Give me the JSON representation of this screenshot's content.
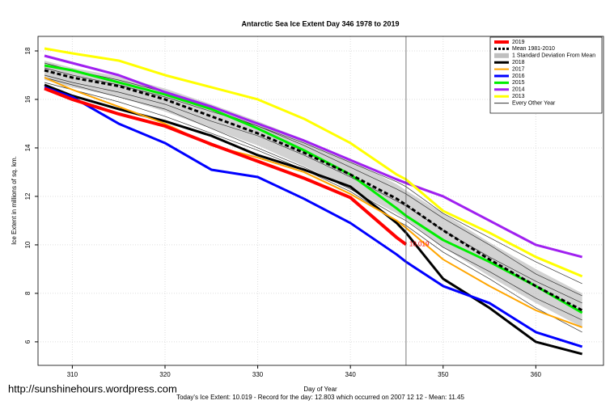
{
  "chart_data": {
    "type": "line",
    "title": "Antarctic Sea Ice Extent Day 346 1978 to 2019",
    "xlabel": "Day of Year",
    "ylabel": "Ice Extent in millions of sq. km.",
    "footer": "Today's Ice Extent: 10.019  - Record for the day: 12.803 which occurred on 2007 12 12  - Mean: 11.45",
    "watermark": "http://sunshinehours.wordpress.com",
    "annotation": "10.019",
    "marker_day": 346,
    "x": [
      307,
      310,
      315,
      320,
      325,
      330,
      335,
      340,
      345,
      346,
      350,
      355,
      360,
      365
    ],
    "xlim": [
      306.3,
      367.3
    ],
    "xticks": [
      310,
      320,
      330,
      340,
      350,
      360
    ],
    "ylim": [
      5.03,
      18.6
    ],
    "yticks": [
      6,
      8,
      10,
      12,
      14,
      16,
      18
    ],
    "grid": true,
    "legend": "top-right",
    "series": [
      {
        "name": "2019",
        "color": "#ff0000",
        "width": 4,
        "values": [
          16.45,
          16.0,
          15.4,
          14.9,
          14.15,
          13.45,
          12.75,
          11.95,
          10.3,
          10.019,
          null,
          null,
          null,
          null
        ]
      },
      {
        "name": "Mean 1981-2010",
        "color": "#000000",
        "width": 3,
        "dashed": true,
        "values": [
          17.2,
          16.9,
          16.55,
          16.0,
          15.3,
          14.6,
          13.8,
          12.9,
          11.9,
          11.65,
          10.6,
          9.4,
          8.3,
          7.3
        ]
      },
      {
        "name": "1 Standard Deviation From Mean",
        "color": "#bfbfbf",
        "upper": [
          17.6,
          17.3,
          16.95,
          16.45,
          15.8,
          15.1,
          14.35,
          13.5,
          12.5,
          12.25,
          11.3,
          10.1,
          9.0,
          8.0
        ],
        "lower": [
          16.8,
          16.5,
          16.1,
          15.5,
          14.8,
          14.1,
          13.25,
          12.3,
          11.3,
          11.05,
          9.9,
          8.7,
          7.6,
          6.6
        ]
      },
      {
        "name": "2018",
        "color": "#000000",
        "width": 3,
        "values": [
          16.6,
          16.15,
          15.6,
          15.1,
          14.5,
          13.7,
          13.1,
          12.4,
          10.9,
          10.5,
          8.6,
          7.4,
          6.0,
          5.5
        ]
      },
      {
        "name": "2017",
        "color": "#ffa500",
        "width": 2,
        "values": [
          16.9,
          16.4,
          15.7,
          15.0,
          14.1,
          13.6,
          13.0,
          12.1,
          11.0,
          10.7,
          9.4,
          8.3,
          7.3,
          6.6
        ]
      },
      {
        "name": "2016",
        "color": "#0000ff",
        "width": 3,
        "values": [
          16.5,
          16.1,
          15.0,
          14.2,
          13.1,
          12.8,
          11.9,
          10.9,
          9.6,
          9.3,
          8.3,
          7.6,
          6.4,
          5.8
        ]
      },
      {
        "name": "2015",
        "color": "#00ee00",
        "width": 3,
        "values": [
          17.4,
          17.2,
          16.7,
          16.2,
          15.6,
          14.8,
          13.9,
          12.9,
          11.5,
          11.2,
          10.2,
          9.3,
          8.3,
          7.2
        ]
      },
      {
        "name": "2014",
        "color": "#a020f0",
        "width": 3,
        "values": [
          17.8,
          17.5,
          17.0,
          16.3,
          15.7,
          15.0,
          14.3,
          13.5,
          12.7,
          12.55,
          12.0,
          11.0,
          10.0,
          9.5
        ]
      },
      {
        "name": "2013",
        "color": "#ffff00",
        "width": 3,
        "values": [
          18.1,
          17.9,
          17.6,
          17.0,
          16.5,
          16.0,
          15.2,
          14.2,
          12.9,
          12.7,
          11.4,
          10.5,
          9.5,
          8.7
        ]
      },
      {
        "name": "Every Other Year",
        "color": "#333333",
        "width": 0.7,
        "lines": [
          [
            17.0,
            16.7,
            16.3,
            15.8,
            15.1,
            14.5,
            13.7,
            12.8,
            11.8,
            11.6,
            10.6,
            9.5,
            8.5,
            7.6
          ],
          [
            17.5,
            17.2,
            16.8,
            16.3,
            15.6,
            14.9,
            14.1,
            13.2,
            12.3,
            12.1,
            11.1,
            10.0,
            8.8,
            7.9
          ],
          [
            16.9,
            16.6,
            16.1,
            15.6,
            14.8,
            14.0,
            13.2,
            12.3,
            11.2,
            11.0,
            9.9,
            8.9,
            7.8,
            6.9
          ],
          [
            17.3,
            17.0,
            16.6,
            16.1,
            15.5,
            14.9,
            14.2,
            13.4,
            12.6,
            12.4,
            11.3,
            10.3,
            9.3,
            8.4
          ],
          [
            16.7,
            16.4,
            15.9,
            15.3,
            14.6,
            13.9,
            13.1,
            12.2,
            11.0,
            10.8,
            9.7,
            8.6,
            7.4,
            6.4
          ]
        ]
      }
    ]
  }
}
